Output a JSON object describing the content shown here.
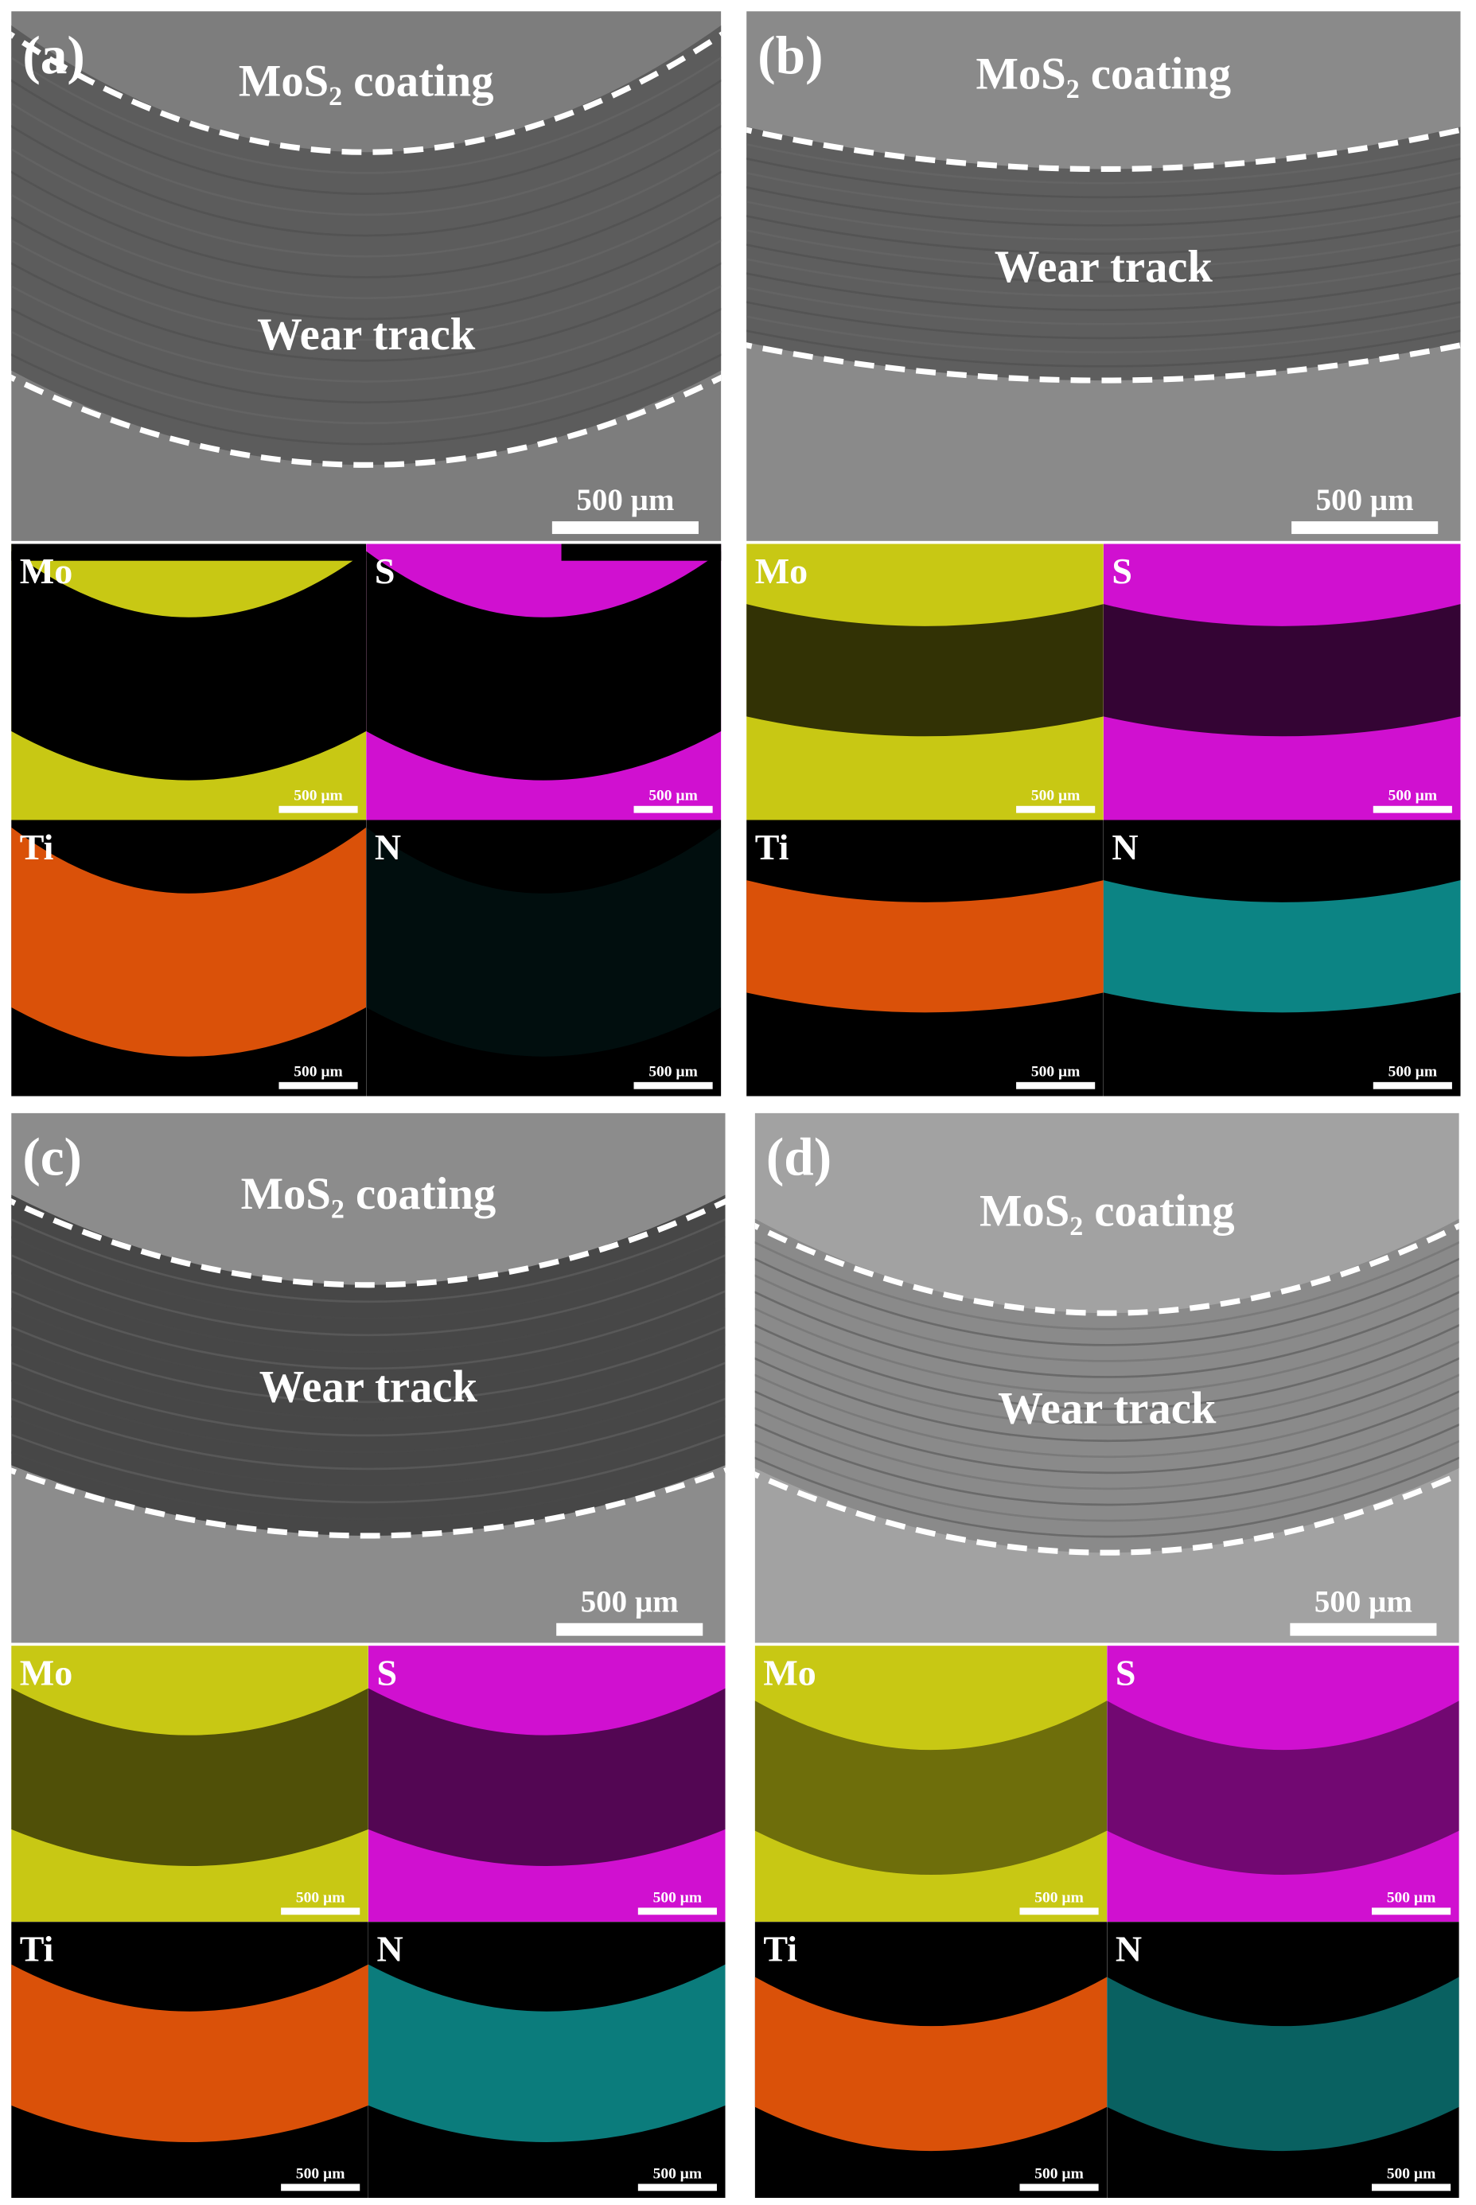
{
  "panels": [
    {
      "label": "(a)",
      "sem": {
        "coating_label": "MoS₂ coating",
        "track_label": "Wear track",
        "scale_bar": "500 µm"
      },
      "maps": [
        {
          "element": "Mo",
          "scale_bar": "500 µm"
        },
        {
          "element": "S",
          "scale_bar": "500 µm"
        },
        {
          "element": "Ti",
          "scale_bar": "500 µm"
        },
        {
          "element": "N",
          "scale_bar": "500 µm"
        }
      ]
    },
    {
      "label": "(b)",
      "sem": {
        "coating_label": "MoS₂ coating",
        "track_label": "Wear track",
        "scale_bar": "500 µm"
      },
      "maps": [
        {
          "element": "Mo",
          "scale_bar": "500 µm"
        },
        {
          "element": "S",
          "scale_bar": "500 µm"
        },
        {
          "element": "Ti",
          "scale_bar": "500 µm"
        },
        {
          "element": "N",
          "scale_bar": "500 µm"
        }
      ]
    },
    {
      "label": "(c)",
      "sem": {
        "coating_label": "MoS₂ coating",
        "track_label": "Wear track",
        "scale_bar": "500 µm"
      },
      "maps": [
        {
          "element": "Mo",
          "scale_bar": "500 µm"
        },
        {
          "element": "S",
          "scale_bar": "500 µm"
        },
        {
          "element": "Ti",
          "scale_bar": "500 µm"
        },
        {
          "element": "N",
          "scale_bar": "500 µm"
        }
      ]
    },
    {
      "label": "(d)",
      "sem": {
        "coating_label": "MoS₂ coating",
        "track_label": "Wear track",
        "scale_bar": "500 µm"
      },
      "maps": [
        {
          "element": "Mo",
          "scale_bar": "500 µm"
        },
        {
          "element": "S",
          "scale_bar": "500 µm"
        },
        {
          "element": "Ti",
          "scale_bar": "500 µm"
        },
        {
          "element": "N",
          "scale_bar": "500 µm"
        }
      ]
    }
  ]
}
